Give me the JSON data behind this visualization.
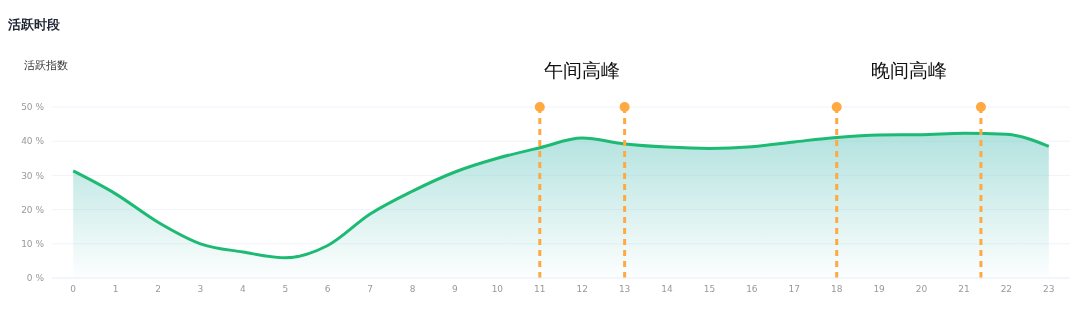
{
  "chart_data": {
    "type": "area",
    "title": "活跃时段",
    "ylabel": "活跃指数",
    "x": [
      0,
      1,
      2,
      3,
      4,
      5,
      6,
      7,
      8,
      9,
      10,
      11,
      12,
      13,
      14,
      15,
      16,
      17,
      18,
      19,
      20,
      21,
      22,
      23
    ],
    "series": [
      {
        "color": "#1dba74",
        "values": [
          31.3,
          24.6,
          16.3,
          10,
          7.6,
          5.9,
          9.5,
          18.7,
          25.4,
          31,
          35,
          38.1,
          40.9,
          39.2,
          38.3,
          37.9,
          38.4,
          39.8,
          41.1,
          41.8,
          41.9,
          42.3,
          42,
          38.5
        ]
      }
    ],
    "xlim": [
      -0.5,
      23.5
    ],
    "xticks": [
      0,
      1,
      2,
      3,
      4,
      5,
      6,
      7,
      8,
      9,
      10,
      11,
      12,
      13,
      14,
      15,
      16,
      17,
      18,
      19,
      20,
      21,
      22,
      23
    ],
    "ylim": [
      0,
      50
    ],
    "yticks": [
      {
        "value": 0,
        "label": "0 %"
      },
      {
        "value": 10,
        "label": "10 %"
      },
      {
        "value": 20,
        "label": "20 %"
      },
      {
        "value": 30,
        "label": "30 %"
      },
      {
        "value": 40,
        "label": "40 %"
      },
      {
        "value": 50,
        "label": "50 %"
      }
    ],
    "grid": "y",
    "legend": false,
    "marker": "none",
    "line_style": "solid",
    "ref_lines": [
      {
        "axis": "x",
        "value": 11,
        "color": "#ffa940",
        "line_style": "dashed"
      },
      {
        "axis": "x",
        "value": 13,
        "color": "#ffa940",
        "line_style": "dashed"
      },
      {
        "axis": "x",
        "value": 18,
        "color": "#ffa940",
        "line_style": "dashed"
      },
      {
        "axis": "x",
        "value": 21.4,
        "color": "#ffa940",
        "line_style": "dashed"
      }
    ],
    "annotations": [
      "午间高峰",
      "晚间高峰"
    ]
  }
}
